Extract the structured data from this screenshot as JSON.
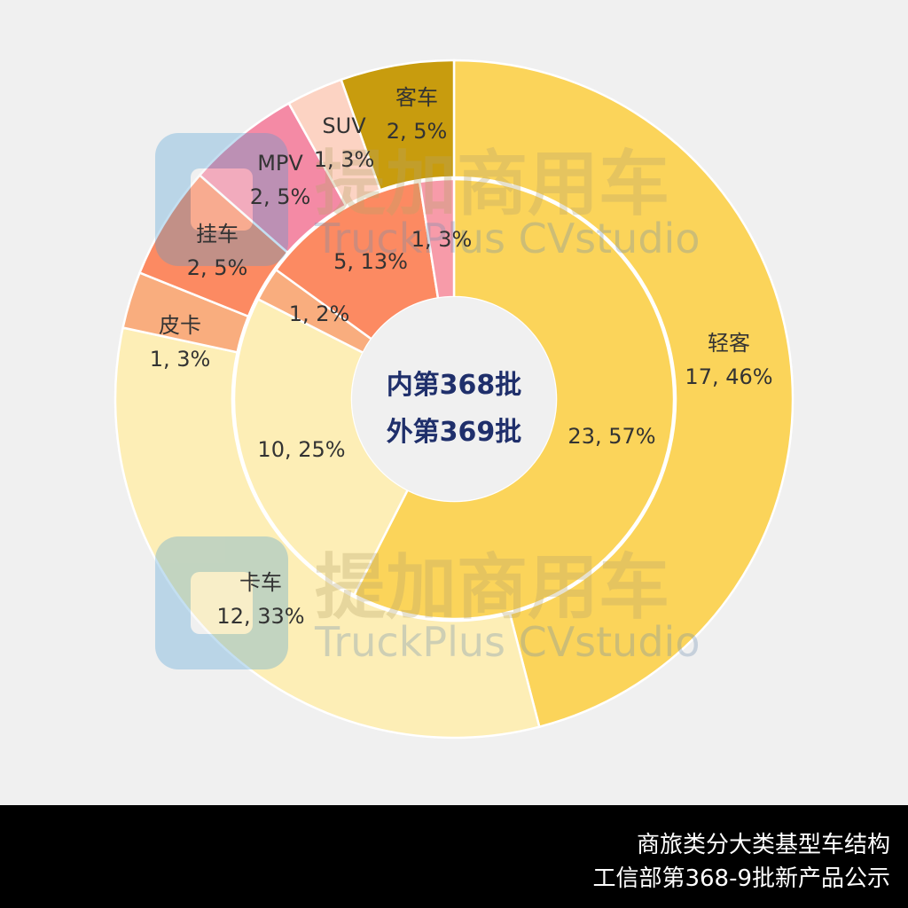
{
  "chart_data": {
    "type": "donut",
    "center_label": [
      "内第368批",
      "外第369批"
    ],
    "inner_ring": {
      "series_label": "内第368批",
      "slices": [
        {
          "value": 23,
          "label": "23, 57%",
          "color": "#fbd45a"
        },
        {
          "value": 10,
          "label": "10, 25%",
          "color": "#fdeeb6"
        },
        {
          "value": 1,
          "label": "1, 2%",
          "color": "#f9ad7e"
        },
        {
          "value": 5,
          "label": "5, 13%",
          "color": "#fc8a62"
        },
        {
          "value": 1,
          "label": "1, 3%",
          "color": "#f79ba9"
        }
      ]
    },
    "outer_ring": {
      "series_label": "外第369批",
      "slices": [
        {
          "value": 17,
          "name": "轻客",
          "label": "17, 46%",
          "color": "#fbd45a"
        },
        {
          "value": 12,
          "name": "卡车",
          "label": "12, 33%",
          "color": "#fdeeb6"
        },
        {
          "value": 1,
          "name": "皮卡",
          "label": "1, 3%",
          "color": "#f9ad7e"
        },
        {
          "value": 2,
          "name": "挂车",
          "label": "2, 5%",
          "color": "#fc8a62"
        },
        {
          "value": 2,
          "name": "MPV",
          "label": "2, 5%",
          "color": "#f48aa5"
        },
        {
          "value": 1,
          "name": "SUV",
          "label": "1, 3%",
          "color": "#fcd3c3"
        },
        {
          "value": 2,
          "name": "客车",
          "label": "2, 5%",
          "color": "#c89c0e"
        }
      ]
    },
    "watermark": {
      "logo_text": "提加商用车",
      "sub_text": "TruckPlus CVstudio"
    }
  },
  "footer": {
    "line1": "商旅类分大类基型车结构",
    "line2": "工信部第368-9批新产品公示"
  }
}
